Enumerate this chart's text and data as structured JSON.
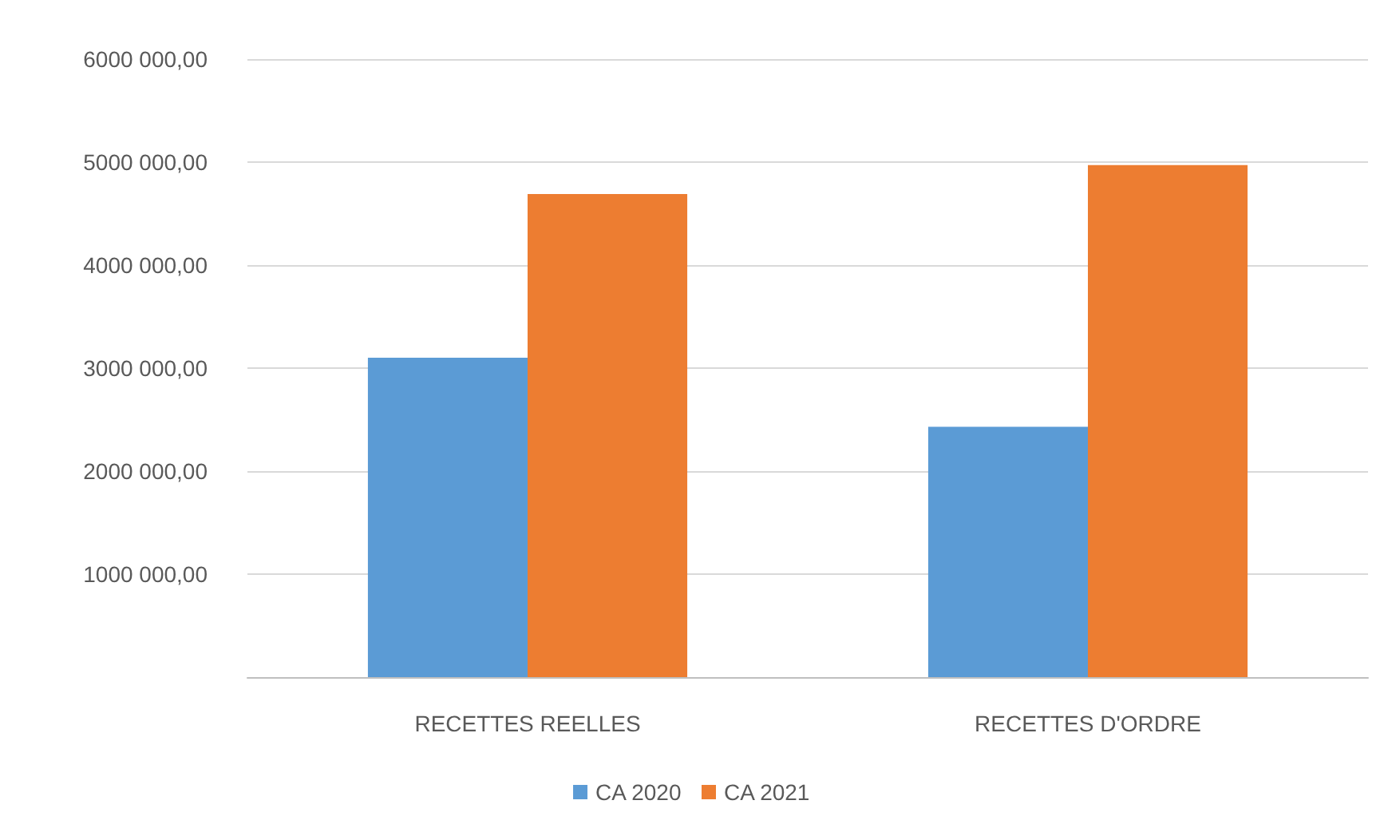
{
  "chart_data": {
    "type": "bar",
    "categories": [
      "RECETTES REELLES",
      "RECETTES D'ORDRE"
    ],
    "series": [
      {
        "name": "CA 2020",
        "color": "#5b9bd5",
        "values": [
          3100000,
          2430000
        ]
      },
      {
        "name": "CA 2021",
        "color": "#ed7d31",
        "values": [
          4690000,
          4970000
        ]
      }
    ],
    "ylim": [
      0,
      6000000
    ],
    "yticks": [
      {
        "value": 0,
        "label": null
      },
      {
        "value": 1000000,
        "label": "1000 000,00"
      },
      {
        "value": 2000000,
        "label": "2000 000,00"
      },
      {
        "value": 3000000,
        "label": "3000 000,00"
      },
      {
        "value": 4000000,
        "label": "4000 000,00"
      },
      {
        "value": 5000000,
        "label": "5000 000,00"
      },
      {
        "value": 6000000,
        "label": "6000 000,00"
      }
    ],
    "grid": true,
    "legend": "bottom"
  }
}
